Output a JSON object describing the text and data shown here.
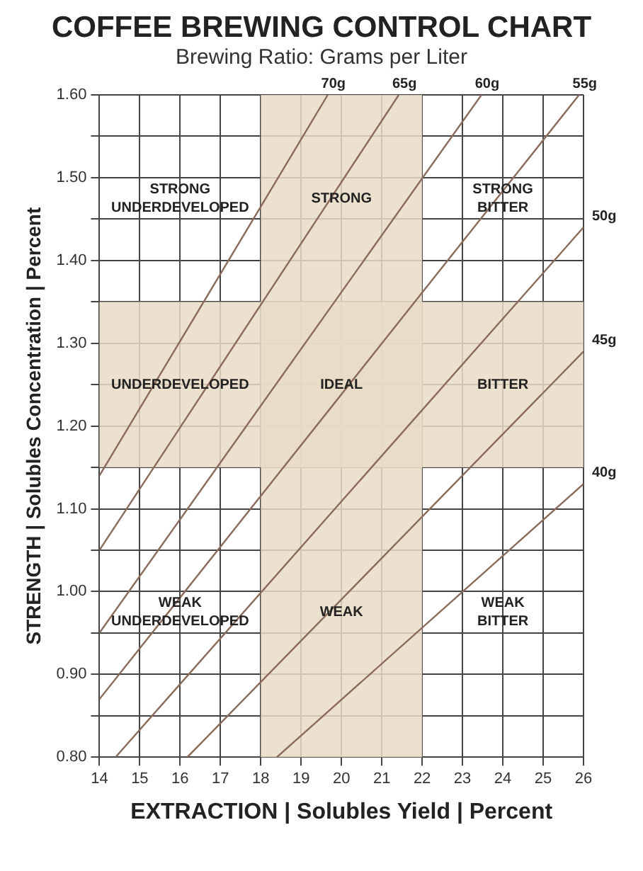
{
  "chart_data": {
    "type": "line",
    "title": "COFFEE BREWING CONTROL CHART",
    "subtitle": "Brewing Ratio: Grams per Liter",
    "xlabel": "EXTRACTION | Solubles Yield | Percent",
    "ylabel": "STRENGTH | Solubles Concentration | Percent",
    "xlim": [
      14,
      26
    ],
    "xticks": [
      14,
      15,
      16,
      17,
      18,
      19,
      20,
      21,
      22,
      23,
      24,
      25,
      26
    ],
    "ylim": [
      0.8,
      1.6
    ],
    "yticks": [
      {
        "value": 0.8,
        "label": "0.80"
      },
      {
        "value": 0.85,
        "label": null
      },
      {
        "value": 0.9,
        "label": "0.90"
      },
      {
        "value": 0.95,
        "label": null
      },
      {
        "value": 1.0,
        "label": "1.00"
      },
      {
        "value": 1.05,
        "label": null
      },
      {
        "value": 1.1,
        "label": "1.10"
      },
      {
        "value": 1.15,
        "label": null
      },
      {
        "value": 1.2,
        "label": "1.20"
      },
      {
        "value": 1.25,
        "label": null
      },
      {
        "value": 1.3,
        "label": "1.30"
      },
      {
        "value": 1.35,
        "label": null
      },
      {
        "value": 1.4,
        "label": "1.40"
      },
      {
        "value": 1.45,
        "label": null
      },
      {
        "value": 1.5,
        "label": "1.50"
      },
      {
        "value": 1.55,
        "label": null
      },
      {
        "value": 1.6,
        "label": "1.60"
      }
    ],
    "grid": true,
    "line_style": "solid",
    "marker": "none",
    "series": [
      {
        "name": "70g",
        "color": "#8a6a5a",
        "x": [
          14,
          19.66
        ],
        "values": [
          1.14,
          1.6
        ]
      },
      {
        "name": "65g",
        "color": "#8a6a5a",
        "x": [
          14,
          21.42
        ],
        "values": [
          1.05,
          1.6
        ]
      },
      {
        "name": "60g",
        "color": "#8a6a5a",
        "x": [
          14,
          23.47
        ],
        "values": [
          0.95,
          1.6
        ]
      },
      {
        "name": "55g",
        "color": "#8a6a5a",
        "x": [
          14,
          25.89
        ],
        "values": [
          0.87,
          1.6
        ]
      },
      {
        "name": "50g",
        "color": "#8a6a5a",
        "x": [
          14.4,
          26
        ],
        "values": [
          0.8,
          1.44
        ]
      },
      {
        "name": "45g",
        "color": "#8a6a5a",
        "x": [
          16.18,
          26
        ],
        "values": [
          0.8,
          1.29
        ]
      },
      {
        "name": "40g",
        "color": "#8a6a5a",
        "x": [
          18.4,
          26
        ],
        "values": [
          0.8,
          1.13
        ]
      }
    ],
    "bands": [
      {
        "axis": "x",
        "from": 18,
        "to": 22,
        "color": "#e9dcc6"
      },
      {
        "axis": "y",
        "from": 1.15,
        "to": 1.35,
        "color": "#e9dcc6"
      }
    ],
    "annotations": [
      "STRONG UNDERDEVELOPED",
      "STRONG",
      "STRONG BITTER",
      "UNDERDEVELOPED",
      "IDEAL",
      "BITTER",
      "WEAK UNDERDEVELOPED",
      "WEAK",
      "WEAK BITTER"
    ]
  }
}
